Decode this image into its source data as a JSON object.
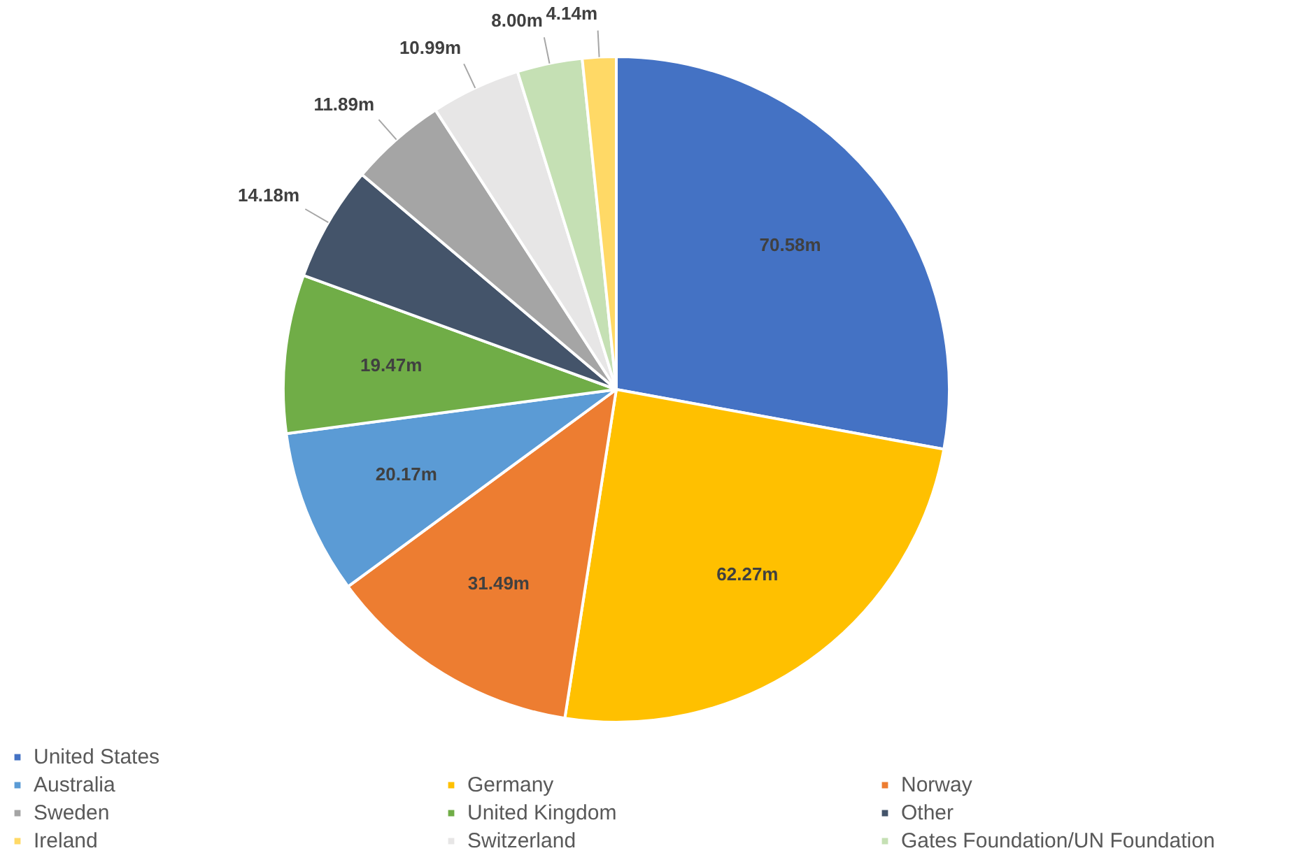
{
  "chart_data": {
    "type": "pie",
    "categories": [
      "United States",
      "Germany",
      "Norway",
      "Australia",
      "United Kingdom",
      "Other",
      "Sweden",
      "Switzerland",
      "Gates Foundation/UN Foundation",
      "Ireland"
    ],
    "values": [
      70.58,
      62.27,
      31.49,
      20.17,
      19.47,
      14.18,
      11.89,
      10.99,
      8.0,
      4.14
    ],
    "value_labels": [
      "70.58m",
      "62.27m",
      "31.49m",
      "20.17m",
      "19.47m",
      "14.18m",
      "11.89m",
      "10.99m",
      "8.00m",
      "4.14m"
    ],
    "colors": [
      "#4472c4",
      "#ffc000",
      "#ed7d31",
      "#5b9bd5",
      "#70ad47",
      "#44546a",
      "#a5a5a5",
      "#e7e6e6",
      "#c5e0b4",
      "#ffd966"
    ],
    "legend": "bottom"
  }
}
